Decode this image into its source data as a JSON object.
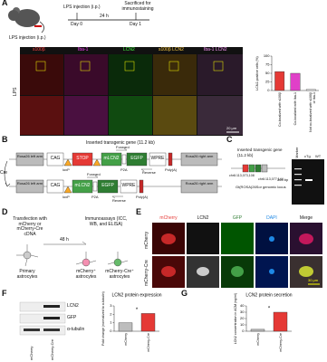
{
  "panels": {
    "A": {
      "letter": "A",
      "injection_label": "LPS injection (i.p.)",
      "timeline": {
        "injection": "LPS injection (i.p.)",
        "interval": "24 h",
        "sacrifice": "Sacrificed for immunostaining",
        "day0": "Day 0",
        "day1": "Day 1"
      },
      "channels": [
        "s100β",
        "Iba-1",
        "LCN2",
        "s100β LCN2",
        "Iba-1 LCN2"
      ],
      "row_label": "LPS",
      "scale_bar": "20 μm"
    },
    "B": {
      "letter": "B",
      "title": "Inserted transgenic gene (11.2 kb)",
      "cre": "Cre",
      "before": {
        "left_arm": "Rosa26 left arm",
        "promoter": "CAG",
        "stop": "STOP",
        "loxp": "loxP",
        "gene": "mLCN2",
        "p2a": "P2A",
        "reporter": "EGFP",
        "wpre": "WPRE",
        "polya": "Poly(A)",
        "right_arm": "Rosa26 right arm",
        "forward": "Forward",
        "reverse": "Reverse"
      },
      "after": {
        "left_arm": "Rosa26 left arm",
        "promoter": "CAG",
        "loxp": "loxP",
        "gene": "mLCN2",
        "p2a": "P2A",
        "reporter": "EGFP",
        "wpre": "WPRE",
        "polya": "Poly(A)",
        "right_arm": "Rosa26 right arm",
        "forward": "Forward",
        "reverse": "Reverse"
      }
    },
    "C": {
      "letter": "C",
      "title": "Inserted transgenic gene (11.2 kb)",
      "start": "chr6:113,073,108",
      "end": "chr6:113,077,144",
      "locus": "Gt(ROSA)26Sor genomic locus",
      "lanes": [
        "Marker",
        "cTg",
        "WT"
      ],
      "band": "364 bp"
    },
    "D": {
      "letter": "D",
      "transfection": "Transfection with mCherry or mCherry-Cre cDNA",
      "interval": "48 h",
      "assays": "Immunoassays (ICC, WB, and ELISA)",
      "source": "Primary astrocytes",
      "control": "mCherry⁺ astrocytes",
      "treated": "mCherry-Cre⁺ astrocytes"
    },
    "E": {
      "letter": "E",
      "channels": [
        "mCherry",
        "LCN2",
        "GFP",
        "DAPI",
        "Merge"
      ],
      "rows": [
        "mCherry",
        "mCherry-Cre"
      ],
      "scale_bar": "30 μm"
    },
    "F": {
      "letter": "F",
      "blot_labels": [
        "LCN2",
        "GFP",
        "α-tubulin"
      ],
      "lanes": [
        "mCherry",
        "mCherry-Cre"
      ]
    },
    "G": {
      "letter": "G"
    }
  },
  "chart_data": [
    {
      "type": "bar",
      "y_label": "LCN2-positive cells (%)",
      "categories": [
        "Co-localized with s100β",
        "Co-localized with Iba-1",
        "Not co-localized with s100β or Iba-1"
      ],
      "values": [
        55,
        50,
        3
      ],
      "colors": [
        "#e53935",
        "#e040c8",
        "#ffffff"
      ],
      "ylim": [
        0,
        100
      ],
      "yticks": [
        0,
        25,
        50,
        75,
        100
      ]
    },
    {
      "type": "bar",
      "title": "LCN2 protein expression",
      "y_label": "Fold change (normalized to α-tubulin)",
      "categories": [
        "mCherry",
        "mCherry-Cre"
      ],
      "values": [
        1.0,
        2.1
      ],
      "colors": [
        "#bdbdbd",
        "#e53935"
      ],
      "ylim": [
        0,
        3
      ],
      "yticks": [
        0,
        1,
        2,
        3
      ],
      "annotation": "*"
    },
    {
      "type": "bar",
      "title": "LCN2 protein secretion",
      "y_label": "LCN2 concentration in ACM (ng/ml)",
      "categories": [
        "mCherry",
        "mCherry-Cre"
      ],
      "values": [
        3,
        30
      ],
      "colors": [
        "#bdbdbd",
        "#e53935"
      ],
      "ylim": [
        0,
        40
      ],
      "yticks": [
        0,
        10,
        20,
        30,
        40
      ],
      "annotation": "*"
    }
  ]
}
